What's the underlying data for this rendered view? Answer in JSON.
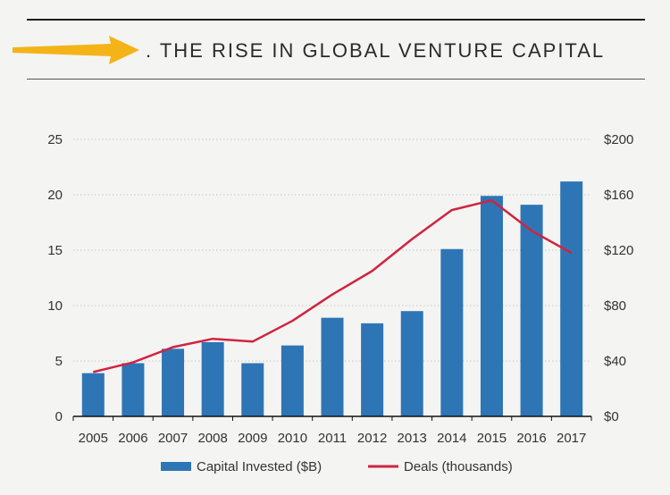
{
  "figure": {
    "title_visible": ". THE RISE IN GLOBAL VENTURE CAPITAL",
    "arrow_color": "#f4b418"
  },
  "colors": {
    "bar": "#2e75b6",
    "line": "#d0243f",
    "grid": "#c8c8c8",
    "axis": "#111111",
    "background": "#f4f4f2"
  },
  "chart_data": {
    "type": "bar",
    "categories": [
      "2005",
      "2006",
      "2007",
      "2008",
      "2009",
      "2010",
      "2011",
      "2012",
      "2013",
      "2014",
      "2015",
      "2016",
      "2017"
    ],
    "series": [
      {
        "name": "Capital Invested ($B)",
        "type": "bar",
        "axis": "left",
        "values": [
          3.9,
          4.8,
          6.1,
          6.7,
          4.8,
          6.4,
          8.9,
          8.4,
          9.5,
          15.1,
          19.9,
          19.1,
          21.2
        ]
      },
      {
        "name": "Deals (thousands)",
        "type": "line",
        "axis": "right",
        "values": [
          32,
          39,
          50,
          56,
          54,
          69,
          88,
          105,
          128,
          149,
          156,
          134,
          118
        ]
      }
    ],
    "ylim_left": [
      0,
      25
    ],
    "yticks_left": [
      "0",
      "5",
      "10",
      "15",
      "20",
      "25"
    ],
    "ylim_right": [
      0,
      200
    ],
    "yticks_right": [
      "$0",
      "$40",
      "$80",
      "$120",
      "$160",
      "$200"
    ],
    "grid": true,
    "legend": "bottom-center"
  }
}
